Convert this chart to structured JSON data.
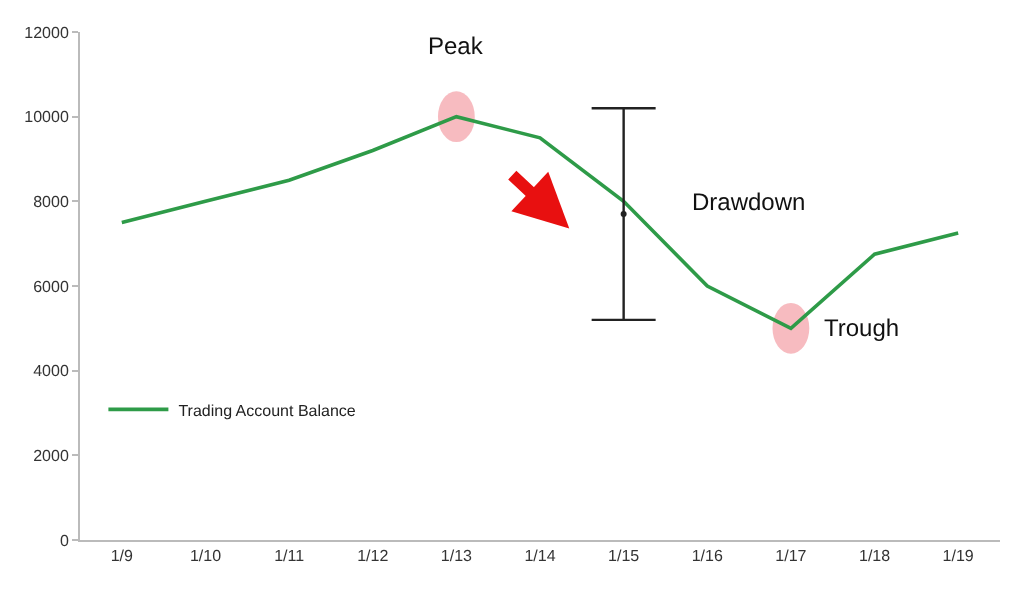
{
  "chart_data": {
    "type": "line",
    "categories": [
      "1/9",
      "1/10",
      "1/11",
      "1/12",
      "1/13",
      "1/14",
      "1/15",
      "1/16",
      "1/17",
      "1/18",
      "1/19"
    ],
    "series": [
      {
        "name": "Trading Account Balance",
        "color": "#2e9b48",
        "values": [
          7500,
          8000,
          8500,
          9200,
          10000,
          9500,
          8000,
          6000,
          5000,
          6750,
          7250
        ]
      },
      {
        "type": "scatter",
        "color": "#222222",
        "marker": "circle",
        "values": [
          null,
          null,
          null,
          null,
          null,
          null,
          7700,
          null,
          null,
          null,
          null
        ],
        "errors": [
          null,
          null,
          null,
          null,
          null,
          null,
          [
            5200,
            10200
          ],
          null,
          null,
          null,
          null
        ]
      }
    ],
    "ylim": [
      0,
      12000
    ],
    "yticks": [
      0,
      2000,
      4000,
      6000,
      8000,
      10000,
      12000
    ],
    "grid": false,
    "legend": "bottom left",
    "marker": "none",
    "line_style": "solid",
    "annotations": [
      {
        "text": "Peak",
        "x": "1/13",
        "y": 10000
      },
      {
        "text": "Trough",
        "x": "1/17",
        "y": 5000
      },
      "Drawdown"
    ]
  }
}
